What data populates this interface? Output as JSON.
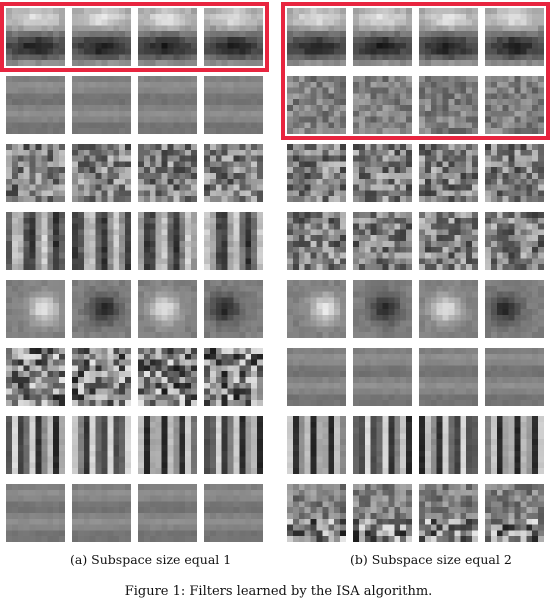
{
  "figure": {
    "caption": "Figure 1: Filters learned by the ISA algorithm.",
    "accent_color": "#e8253f"
  },
  "panels": [
    {
      "id": "a",
      "caption": "(a) Subspace size equal 1",
      "rows": 8,
      "cols": 4,
      "row_patterns": [
        "hband-dark",
        "hstripe-weak",
        "mixed-checker",
        "vstripe-mid",
        "blob",
        "mixed-strong",
        "vstripe-fine",
        "hstripe-weak"
      ],
      "highlight": {
        "rows": [
          0,
          0
        ]
      }
    },
    {
      "id": "b",
      "caption": "(b) Subspace size equal 2",
      "rows": 8,
      "cols": 4,
      "row_patterns": [
        "hband-dark",
        "mixed-weak",
        "mixed-checker",
        "mixed-checker",
        "blob",
        "hstripe-weak",
        "vstripe-fine",
        "mixed-bottom"
      ],
      "highlight": {
        "rows": [
          0,
          1
        ]
      }
    }
  ]
}
